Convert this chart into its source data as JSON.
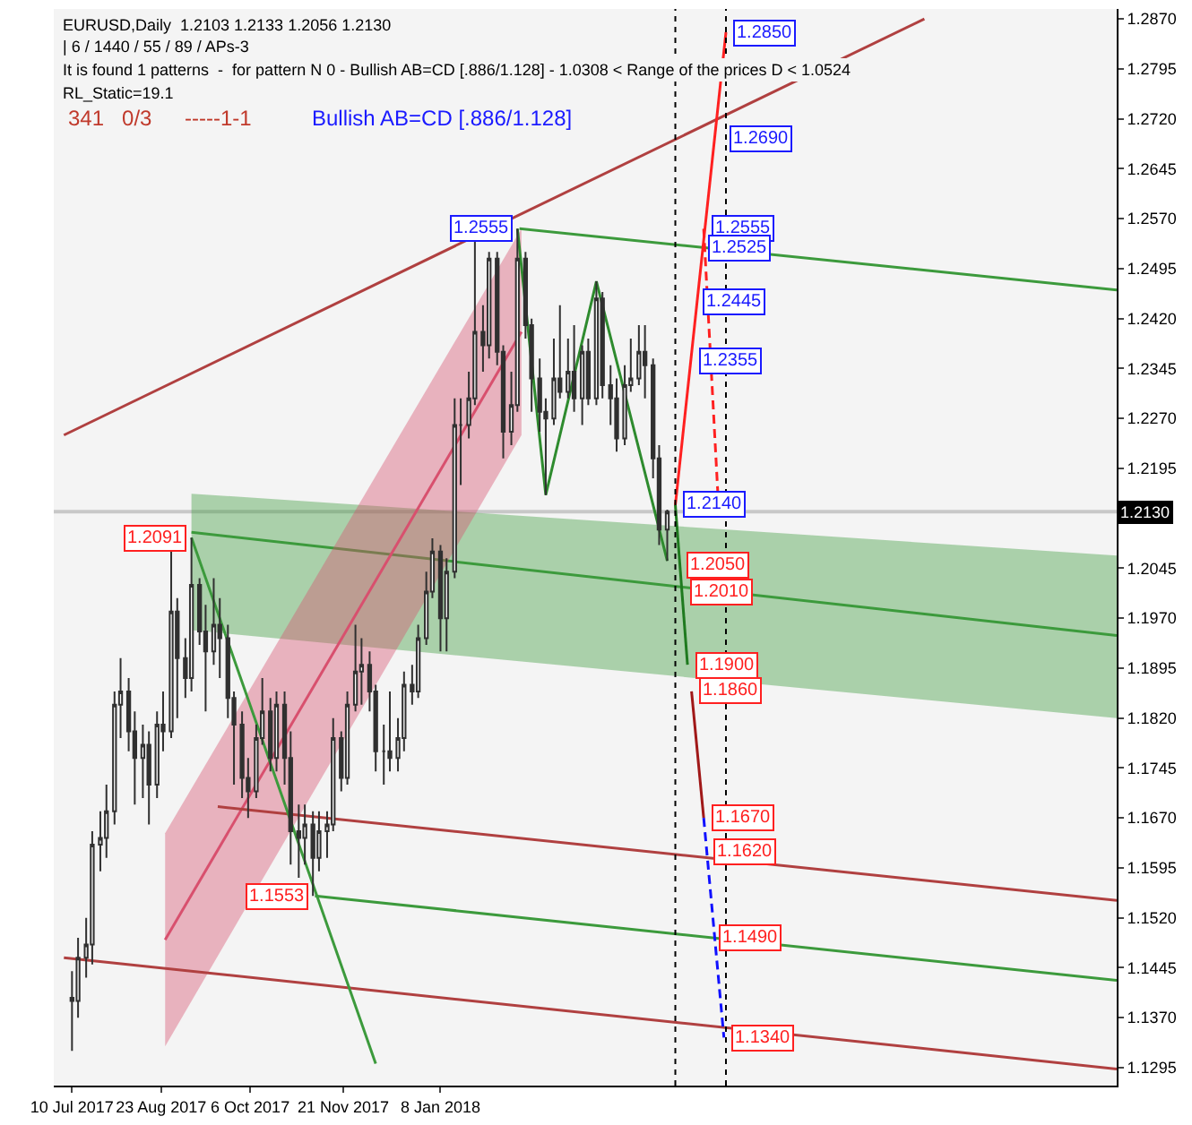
{
  "chart_data": {
    "type": "candlestick",
    "annotations": [
      "EURUSD,Daily  1.2103 1.2133 1.2056 1.2130",
      "| 6 / 1440 / 55 / 89 / APs-3",
      "It is found 1 patterns  -  for pattern N 0 - Bullish AB=CD [.886/1.128] - 1.0308 < Range of the prices D < 1.0524",
      "RL_Static=19.1",
      "341   0/3",
      "-----1-1",
      "Bullish AB=CD [.886/1.128]",
      {
        "text": "1.2555",
        "x": "2018-02-15",
        "y": 1.2555
      },
      {
        "text": "1.2091",
        "x": "2017-09-07",
        "y": 1.2091
      },
      {
        "text": "1.1553",
        "x": "2017-11-06",
        "y": 1.1553
      },
      {
        "text": "1.2850",
        "x": "2018-05-29",
        "y": 1.285
      },
      {
        "text": "1.2690",
        "x": "2018-05-27",
        "y": 1.269
      },
      {
        "text": "1.2555",
        "x": "2018-05-18",
        "y": 1.2555
      },
      {
        "text": "1.2525",
        "x": "2018-05-17",
        "y": 1.2525
      },
      {
        "text": "1.2445",
        "x": "2018-05-14",
        "y": 1.2445
      },
      {
        "text": "1.2355",
        "x": "2018-05-12",
        "y": 1.2355
      },
      {
        "text": "1.2140",
        "x": "2018-05-04",
        "y": 1.214
      },
      {
        "text": "1.2050",
        "x": "2018-05-06",
        "y": 1.205
      },
      {
        "text": "1.2010",
        "x": "2018-05-08",
        "y": 1.201
      },
      {
        "text": "1.1900",
        "x": "2018-05-10",
        "y": 1.19
      },
      {
        "text": "1.1860",
        "x": "2018-05-12",
        "y": 1.186
      },
      {
        "text": "1.1670",
        "x": "2018-05-18",
        "y": 1.167
      },
      {
        "text": "1.1620",
        "x": "2018-05-19",
        "y": 1.162
      },
      {
        "text": "1.1490",
        "x": "2018-05-22",
        "y": 1.149
      },
      {
        "text": "1.1340",
        "x": "2018-05-28",
        "y": 1.134
      }
    ],
    "xlim": [
      "2017-07-01",
      "2018-12-08"
    ],
    "xticks": [
      {
        "value": "2017-07-10",
        "label": "10 Jul 2017"
      },
      {
        "value": "2017-08-23",
        "label": "23 Aug 2017"
      },
      {
        "value": "2017-10-06",
        "label": "6 Oct 2017"
      },
      {
        "value": "2017-11-21",
        "label": "21 Nov 2017"
      },
      {
        "value": "2018-01-08",
        "label": "8 Jan 2018"
      }
    ],
    "ylim": [
      1.1268,
      1.2885
    ],
    "yticks": [
      1.1295,
      {
        "value": 1.137,
        "label": "1.1370"
      },
      1.1445,
      {
        "value": 1.152,
        "label": "1.1520"
      },
      1.1595,
      {
        "value": 1.167,
        "label": "1.1670"
      },
      1.1745,
      {
        "value": 1.182,
        "label": "1.1820"
      },
      1.1895,
      {
        "value": 1.197,
        "label": "1.1970"
      },
      1.2045,
      1.2195,
      {
        "value": 1.227,
        "label": "1.2270"
      },
      1.2345,
      {
        "value": 1.242,
        "label": "1.2420"
      },
      1.2495,
      {
        "value": 1.257,
        "label": "1.2570"
      },
      1.2645,
      {
        "value": 1.272,
        "label": "1.2720"
      },
      1.2795,
      {
        "value": 1.287,
        "label": "1.2870"
      }
    ],
    "grid": false,
    "ref_lines": [
      {
        "axis": "y",
        "value": 1.213,
        "label": "1.2130",
        "color": "#c8c8c8"
      },
      {
        "axis": "x",
        "value": "2018-05-04",
        "color": "#000000",
        "line_style": "dotted"
      },
      {
        "axis": "x",
        "value": "2018-05-29",
        "color": "#000000",
        "line_style": "dotted"
      }
    ],
    "series": [
      {
        "type": "line",
        "color": "#3c9a3c",
        "x": [
          "2017-09-07",
          "2018-12-08"
        ],
        "values": [
          1.2099,
          1.1944
        ],
        "lower": [
          1.1952,
          1.182
        ],
        "upper": [
          1.2157,
          1.2064
        ]
      },
      {
        "type": "line",
        "color": "#d8506e",
        "x": [
          "2017-08-25",
          "2018-02-17"
        ],
        "values": [
          1.1487,
          1.24
        ],
        "lower": [
          1.1327,
          1.2245
        ],
        "upper": [
          1.1647,
          1.2555
        ]
      },
      {
        "type": "line",
        "color": "#b04040",
        "x": [
          "2017-07-06",
          "2018-09-04"
        ],
        "values": [
          1.2245,
          1.287
        ]
      },
      {
        "type": "line",
        "color": "#3c9a3c",
        "x": [
          "2018-02-16",
          "2018-12-08"
        ],
        "values": [
          1.2555,
          1.2463
        ]
      },
      {
        "type": "line",
        "color": "#3c9a3c",
        "x": [
          "2017-11-07",
          "2018-12-08"
        ],
        "values": [
          1.1553,
          1.1426
        ]
      },
      {
        "type": "line",
        "color": "#b04040",
        "x": [
          "2017-07-06",
          "2018-12-08"
        ],
        "values": [
          1.146,
          1.1293
        ]
      },
      {
        "type": "line",
        "color": "#b04040",
        "x": [
          "2017-09-20",
          "2018-12-08"
        ],
        "values": [
          1.1687,
          1.1546
        ]
      },
      {
        "type": "line",
        "color": "#3c9a3c",
        "x": [
          "2017-09-07",
          "2017-12-07"
        ],
        "values": [
          1.2091,
          1.1301
        ]
      },
      {
        "color": "#303030",
        "x": [
          "2017-07-10",
          "2017-07-13",
          "2017-07-17",
          "2017-07-20",
          "2017-07-24",
          "2017-07-27",
          "2017-07-31",
          "2017-08-03",
          "2017-08-07",
          "2017-08-10",
          "2017-08-14",
          "2017-08-17",
          "2017-08-21",
          "2017-08-24",
          "2017-08-28",
          "2017-08-31",
          "2017-09-04",
          "2017-09-07",
          "2017-09-11",
          "2017-09-14",
          "2017-09-18",
          "2017-09-21",
          "2017-09-25",
          "2017-09-28",
          "2017-10-02",
          "2017-10-05",
          "2017-10-09",
          "2017-10-12",
          "2017-10-16",
          "2017-10-19",
          "2017-10-23",
          "2017-10-26",
          "2017-10-30",
          "2017-11-02",
          "2017-11-06",
          "2017-11-09",
          "2017-11-13",
          "2017-11-16",
          "2017-11-20",
          "2017-11-23",
          "2017-11-27",
          "2017-11-30",
          "2017-12-04",
          "2017-12-07",
          "2017-12-11",
          "2017-12-14",
          "2017-12-18",
          "2017-12-21",
          "2017-12-25",
          "2017-12-28",
          "2018-01-01",
          "2018-01-04",
          "2018-01-08",
          "2018-01-11",
          "2018-01-15",
          "2018-01-18",
          "2018-01-22",
          "2018-01-25",
          "2018-01-29",
          "2018-02-01",
          "2018-02-05",
          "2018-02-08",
          "2018-02-12",
          "2018-02-15",
          "2018-02-19",
          "2018-02-22",
          "2018-02-26",
          "2018-03-01",
          "2018-03-05",
          "2018-03-08",
          "2018-03-12",
          "2018-03-15",
          "2018-03-19",
          "2018-03-22",
          "2018-03-26",
          "2018-03-29",
          "2018-04-02",
          "2018-04-05",
          "2018-04-09",
          "2018-04-12",
          "2018-04-16",
          "2018-04-19",
          "2018-04-23",
          "2018-04-26",
          "2018-04-30"
        ],
        "ohlc": [
          [
            1.14,
            1.144,
            1.132,
            1.1395
          ],
          [
            1.1395,
            1.149,
            1.137,
            1.146
          ],
          [
            1.146,
            1.152,
            1.143,
            1.148
          ],
          [
            1.148,
            1.165,
            1.145,
            1.163
          ],
          [
            1.163,
            1.168,
            1.159,
            1.164
          ],
          [
            1.164,
            1.172,
            1.161,
            1.168
          ],
          [
            1.168,
            1.186,
            1.166,
            1.184
          ],
          [
            1.184,
            1.191,
            1.179,
            1.186
          ],
          [
            1.186,
            1.188,
            1.177,
            1.18
          ],
          [
            1.18,
            1.183,
            1.169,
            1.176
          ],
          [
            1.176,
            1.181,
            1.17,
            1.178
          ],
          [
            1.178,
            1.18,
            1.166,
            1.172
          ],
          [
            1.172,
            1.183,
            1.17,
            1.181
          ],
          [
            1.181,
            1.186,
            1.177,
            1.18
          ],
          [
            1.18,
            1.207,
            1.179,
            1.198
          ],
          [
            1.198,
            1.2,
            1.182,
            1.191
          ],
          [
            1.191,
            1.194,
            1.185,
            1.188
          ],
          [
            1.188,
            1.2091,
            1.186,
            1.202
          ],
          [
            1.202,
            1.203,
            1.193,
            1.195
          ],
          [
            1.195,
            1.199,
            1.183,
            1.192
          ],
          [
            1.192,
            1.203,
            1.19,
            1.196
          ],
          [
            1.196,
            1.2,
            1.188,
            1.194
          ],
          [
            1.194,
            1.196,
            1.182,
            1.185
          ],
          [
            1.185,
            1.186,
            1.172,
            1.181
          ],
          [
            1.181,
            1.183,
            1.17,
            1.173
          ],
          [
            1.173,
            1.176,
            1.167,
            1.171
          ],
          [
            1.171,
            1.181,
            1.17,
            1.179
          ],
          [
            1.179,
            1.188,
            1.178,
            1.183
          ],
          [
            1.183,
            1.185,
            1.174,
            1.176
          ],
          [
            1.176,
            1.186,
            1.174,
            1.184
          ],
          [
            1.184,
            1.186,
            1.172,
            1.176
          ],
          [
            1.176,
            1.18,
            1.16,
            1.165
          ],
          [
            1.165,
            1.169,
            1.158,
            1.164
          ],
          [
            1.164,
            1.169,
            1.16,
            1.166
          ],
          [
            1.166,
            1.168,
            1.1553,
            1.161
          ],
          [
            1.161,
            1.168,
            1.159,
            1.165
          ],
          [
            1.165,
            1.168,
            1.161,
            1.166
          ],
          [
            1.166,
            1.182,
            1.165,
            1.179
          ],
          [
            1.179,
            1.18,
            1.171,
            1.173
          ],
          [
            1.173,
            1.186,
            1.172,
            1.184
          ],
          [
            1.184,
            1.196,
            1.183,
            1.189
          ],
          [
            1.189,
            1.194,
            1.184,
            1.19
          ],
          [
            1.19,
            1.192,
            1.183,
            1.186
          ],
          [
            1.186,
            1.187,
            1.174,
            1.177
          ],
          [
            1.177,
            1.181,
            1.172,
            1.177
          ],
          [
            1.177,
            1.186,
            1.174,
            1.176
          ],
          [
            1.176,
            1.182,
            1.174,
            1.179
          ],
          [
            1.179,
            1.189,
            1.177,
            1.187
          ],
          [
            1.187,
            1.19,
            1.184,
            1.186
          ],
          [
            1.186,
            1.196,
            1.185,
            1.194
          ],
          [
            1.194,
            1.204,
            1.193,
            1.201
          ],
          [
            1.201,
            1.209,
            1.2,
            1.207
          ],
          [
            1.207,
            1.208,
            1.192,
            1.197
          ],
          [
            1.197,
            1.206,
            1.192,
            1.204
          ],
          [
            1.204,
            1.23,
            1.203,
            1.226
          ],
          [
            1.226,
            1.23,
            1.217,
            1.226
          ],
          [
            1.226,
            1.234,
            1.224,
            1.23
          ],
          [
            1.23,
            1.2537,
            1.229,
            1.24
          ],
          [
            1.24,
            1.244,
            1.234,
            1.238
          ],
          [
            1.238,
            1.252,
            1.236,
            1.251
          ],
          [
            1.251,
            1.252,
            1.235,
            1.237
          ],
          [
            1.237,
            1.238,
            1.221,
            1.225
          ],
          [
            1.225,
            1.234,
            1.223,
            1.229
          ],
          [
            1.229,
            1.2555,
            1.228,
            1.251
          ],
          [
            1.251,
            1.252,
            1.239,
            1.241
          ],
          [
            1.241,
            1.242,
            1.228,
            1.233
          ],
          [
            1.233,
            1.236,
            1.225,
            1.228
          ],
          [
            1.228,
            1.23,
            1.2155,
            1.227
          ],
          [
            1.227,
            1.239,
            1.226,
            1.233
          ],
          [
            1.233,
            1.244,
            1.23,
            1.231
          ],
          [
            1.231,
            1.239,
            1.23,
            1.234
          ],
          [
            1.234,
            1.241,
            1.228,
            1.23
          ],
          [
            1.23,
            1.238,
            1.226,
            1.237
          ],
          [
            1.237,
            1.239,
            1.229,
            1.23
          ],
          [
            1.23,
            1.2476,
            1.229,
            1.245
          ],
          [
            1.245,
            1.246,
            1.23,
            1.232
          ],
          [
            1.232,
            1.235,
            1.226,
            1.23
          ],
          [
            1.23,
            1.233,
            1.222,
            1.224
          ],
          [
            1.224,
            1.235,
            1.223,
            1.232
          ],
          [
            1.232,
            1.239,
            1.231,
            1.233
          ],
          [
            1.233,
            1.241,
            1.232,
            1.237
          ],
          [
            1.237,
            1.241,
            1.23,
            1.235
          ],
          [
            1.235,
            1.236,
            1.218,
            1.221
          ],
          [
            1.221,
            1.223,
            1.208,
            1.2103
          ],
          [
            1.2103,
            1.2133,
            1.2056,
            1.213
          ]
        ]
      },
      {
        "type": "line",
        "color": "#2e8b2e",
        "x": [
          "2018-02-15",
          "2018-03-01",
          "2018-03-26",
          "2018-04-30"
        ],
        "values": [
          1.2555,
          1.2155,
          1.2476,
          1.2056
        ]
      },
      {
        "type": "line",
        "color": "#ff2020",
        "x": [
          "2018-05-04",
          "2018-05-29"
        ],
        "values": [
          1.214,
          1.285
        ]
      },
      {
        "type": "line",
        "color": "#ff2020",
        "line_style": "dashed",
        "x": [
          "2018-05-18",
          "2018-05-25"
        ],
        "values": [
          1.2555,
          1.2157
        ]
      },
      {
        "type": "line",
        "color": "#1f7a1f",
        "x": [
          "2018-05-04",
          "2018-05-10"
        ],
        "values": [
          1.214,
          1.19
        ]
      },
      {
        "type": "line",
        "color": "#a01818",
        "x": [
          "2018-05-12",
          "2018-05-18"
        ],
        "values": [
          1.186,
          1.167
        ]
      },
      {
        "type": "line",
        "color": "#1010ff",
        "line_style": "dashed",
        "x": [
          "2018-05-18",
          "2018-05-28"
        ],
        "values": [
          1.167,
          1.134
        ]
      }
    ]
  }
}
